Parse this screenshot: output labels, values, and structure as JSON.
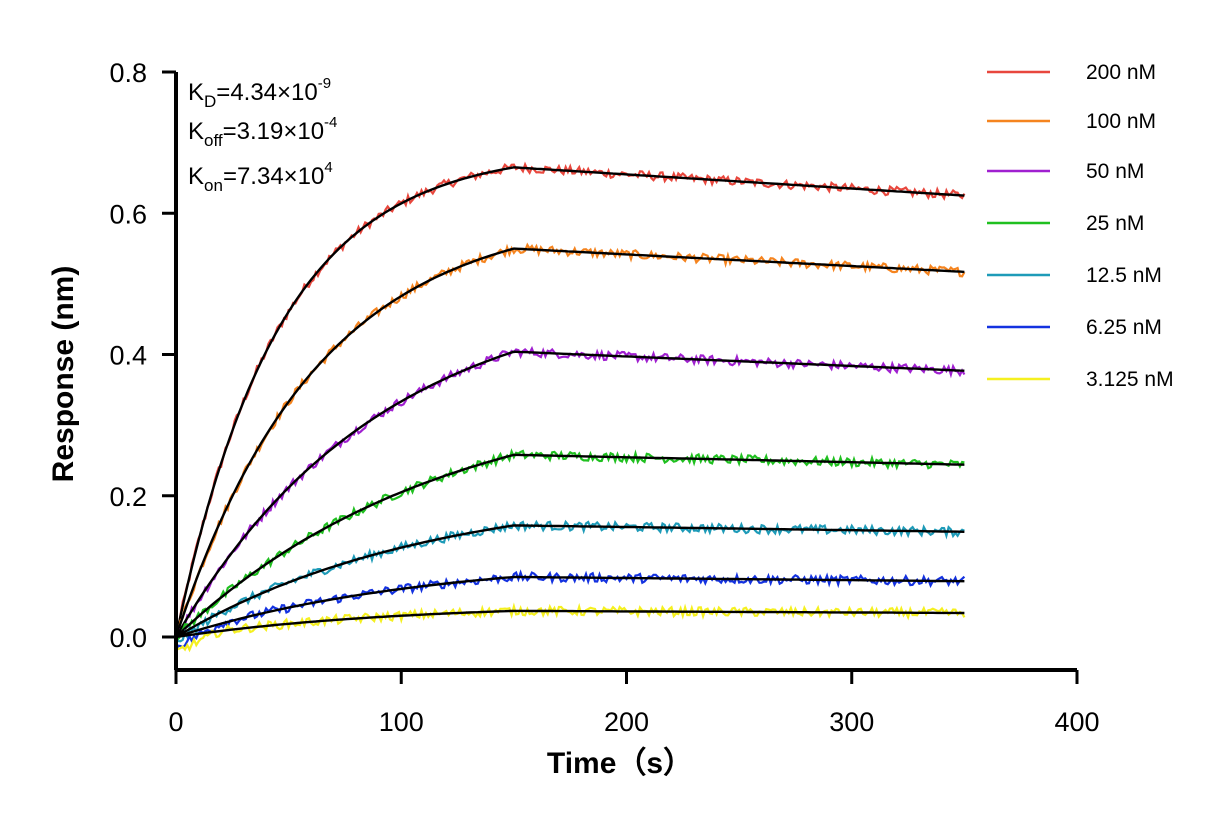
{
  "chart_data": {
    "type": "line",
    "xlabel": "Time（s）",
    "ylabel": "Response (nm)",
    "xlim": [
      0,
      400
    ],
    "ylim": [
      -0.05,
      0.8
    ],
    "xticks": [
      0,
      100,
      200,
      300,
      400
    ],
    "xtick_labels": [
      "0",
      "100",
      "200",
      "300",
      "400"
    ],
    "yticks": [
      0.0,
      0.2,
      0.4,
      0.6,
      0.8
    ],
    "ytick_labels": [
      "0.0",
      "0.2",
      "0.4",
      "0.6",
      "0.8"
    ],
    "grid": false,
    "legend_position": "right",
    "association_end": 150,
    "time_end": 350,
    "annotations": {
      "kd": {
        "base": "K",
        "sub": "D",
        "mid": "=4.34×10",
        "exp": "-9"
      },
      "koff": {
        "base": "K",
        "sub": "off",
        "mid": "=3.19×10",
        "exp": "-4"
      },
      "kon": {
        "base": "K",
        "sub": "on",
        "mid": "=7.34×10",
        "exp": "4"
      }
    },
    "series": [
      {
        "name": "200 nM",
        "color": "#e8473d",
        "plateau": 0.665,
        "end": 0.625,
        "noise": 0.004
      },
      {
        "name": "100 nM",
        "color": "#f5841f",
        "plateau": 0.55,
        "end": 0.517,
        "noise": 0.004
      },
      {
        "name": "50 nM",
        "color": "#a020d0",
        "plateau": 0.404,
        "end": 0.377,
        "noise": 0.004
      },
      {
        "name": "25 nM",
        "color": "#20c020",
        "plateau": 0.258,
        "end": 0.244,
        "noise": 0.004
      },
      {
        "name": "12.5 nM",
        "color": "#1e9bb8",
        "plateau": 0.158,
        "end": 0.149,
        "noise": 0.004
      },
      {
        "name": "6.25 nM",
        "color": "#1432e0",
        "plateau": 0.085,
        "end": 0.079,
        "noise": 0.004
      },
      {
        "name": "3.125 nM",
        "color": "#f5f020",
        "plateau": 0.037,
        "end": 0.034,
        "noise": 0.004
      }
    ]
  }
}
